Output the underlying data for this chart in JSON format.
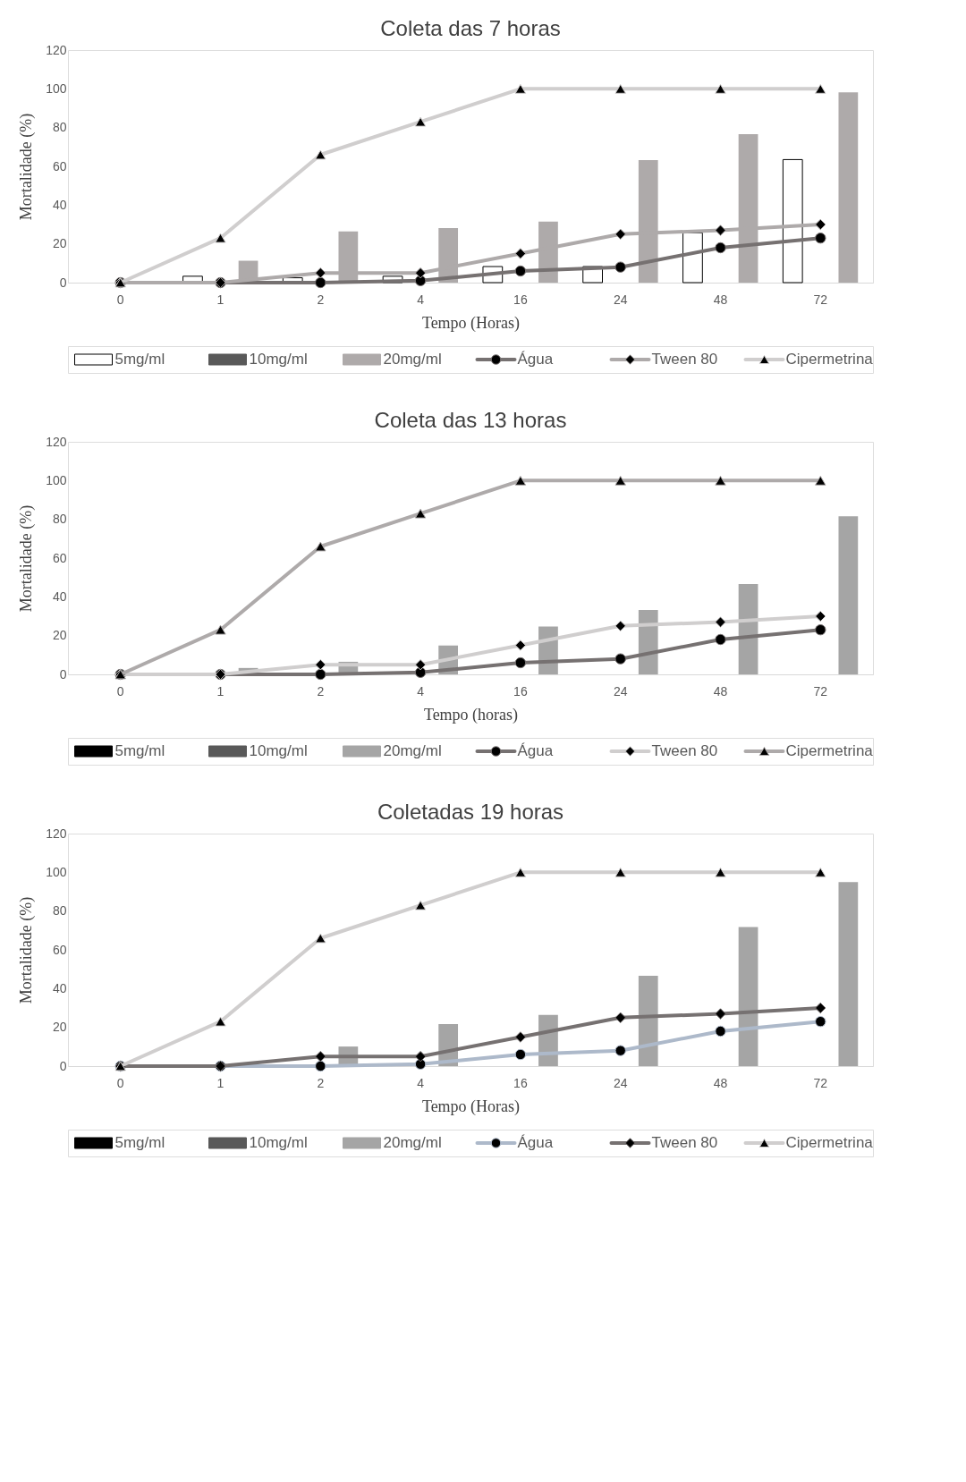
{
  "chart_data": [
    {
      "type": "bar",
      "title": "Coleta das 7 horas",
      "xlabel": "Tempo (Horas)",
      "ylabel": "Mortalidade (%)",
      "categories": [
        "0",
        "1",
        "2",
        "4",
        "16",
        "24",
        "48",
        "72"
      ],
      "ylim": [
        0,
        120
      ],
      "yticks": [
        0,
        20,
        40,
        60,
        80,
        100,
        120
      ],
      "grid": false,
      "legend": "bottom",
      "series": [
        {
          "name": "5mg/ml",
          "type": "bar",
          "color": "#ffffff",
          "values": [
            0,
            3.3,
            2.5,
            3.3,
            8.3,
            8.3,
            25.7,
            63.5
          ]
        },
        {
          "name": "10mg/ml",
          "type": "bar",
          "color": "#595959",
          "values": [
            0,
            0,
            0,
            0,
            0,
            0,
            0,
            0
          ]
        },
        {
          "name": "20mg/ml",
          "type": "bar",
          "color": "#aeaaaa",
          "values": [
            0,
            11.3,
            26.4,
            28.2,
            31.5,
            63.2,
            76.6,
            98.2
          ]
        },
        {
          "name": "Água",
          "type": "line",
          "marker": "circle",
          "color": "#767171",
          "values": [
            0,
            0,
            0,
            1,
            6,
            8,
            18,
            23
          ]
        },
        {
          "name": "Tween 80",
          "type": "line",
          "marker": "diamond",
          "color": "#aeaaaa",
          "values": [
            0,
            0,
            5,
            5,
            15,
            25,
            27,
            30
          ]
        },
        {
          "name": "Cipermetrina",
          "type": "line",
          "marker": "triangle",
          "color": "#d0cece",
          "values": [
            0,
            23,
            66,
            83,
            100,
            100,
            100,
            100
          ]
        }
      ]
    },
    {
      "type": "bar",
      "title": "Coleta das 13 horas",
      "xlabel": "Tempo (horas)",
      "ylabel": "Mortalidade (%)",
      "categories": [
        "0",
        "1",
        "2",
        "4",
        "16",
        "24",
        "48",
        "72"
      ],
      "ylim": [
        0,
        120
      ],
      "yticks": [
        0,
        20,
        40,
        60,
        80,
        100,
        120
      ],
      "grid": false,
      "legend": "bottom",
      "series": [
        {
          "name": "5mg/ml",
          "type": "bar",
          "color": "#000000",
          "values": [
            0,
            0,
            0,
            0,
            0,
            0,
            0,
            0
          ]
        },
        {
          "name": "10mg/ml",
          "type": "bar",
          "color": "#595959",
          "values": [
            0,
            0,
            0,
            0,
            0,
            0,
            0,
            0
          ]
        },
        {
          "name": "20mg/ml",
          "type": "bar",
          "color": "#a5a5a5",
          "values": [
            0,
            3.3,
            6.5,
            14.9,
            24.7,
            33.2,
            46.6,
            81.6
          ]
        },
        {
          "name": "Água",
          "type": "line",
          "marker": "circle",
          "color": "#767171",
          "values": [
            0,
            0,
            0,
            1,
            6,
            8,
            18,
            23
          ]
        },
        {
          "name": "Tween 80",
          "type": "line",
          "marker": "diamond",
          "color": "#d0cece",
          "values": [
            0,
            0,
            5,
            5,
            15,
            25,
            27,
            30
          ]
        },
        {
          "name": "Cipermetrina",
          "type": "line",
          "marker": "triangle",
          "color": "#aeaaaa",
          "values": [
            0,
            23,
            66,
            83,
            100,
            100,
            100,
            100
          ]
        }
      ]
    },
    {
      "type": "bar",
      "title": "Coletadas 19 horas",
      "xlabel": "Tempo (Horas)",
      "ylabel": "Mortalidade (%)",
      "categories": [
        "0",
        "1",
        "2",
        "4",
        "16",
        "24",
        "48",
        "72"
      ],
      "ylim": [
        0,
        120
      ],
      "yticks": [
        0,
        20,
        40,
        60,
        80,
        100,
        120
      ],
      "grid": false,
      "legend": "bottom",
      "series": [
        {
          "name": "5mg/ml",
          "type": "bar",
          "color": "#000000",
          "values": [
            0,
            0,
            0,
            0,
            0,
            0,
            0,
            0
          ]
        },
        {
          "name": "10mg/ml",
          "type": "bar",
          "color": "#595959",
          "values": [
            0,
            0,
            0,
            0,
            0,
            0,
            0,
            0
          ]
        },
        {
          "name": "20mg/ml",
          "type": "bar",
          "color": "#a5a5a5",
          "values": [
            0,
            0,
            10.1,
            21.7,
            26.4,
            46.6,
            71.8,
            95
          ]
        },
        {
          "name": "Água",
          "type": "line",
          "marker": "circle",
          "color": "#adb9ca",
          "values": [
            0,
            0,
            0,
            1,
            6,
            8,
            18,
            23
          ]
        },
        {
          "name": "Tween 80",
          "type": "line",
          "marker": "diamond",
          "color": "#767171",
          "values": [
            0,
            0,
            5,
            5,
            15,
            25,
            27,
            30
          ]
        },
        {
          "name": "Cipermetrina",
          "type": "line",
          "marker": "triangle",
          "color": "#d0cece",
          "values": [
            0,
            23,
            66,
            83,
            100,
            100,
            100,
            100
          ]
        }
      ]
    }
  ]
}
